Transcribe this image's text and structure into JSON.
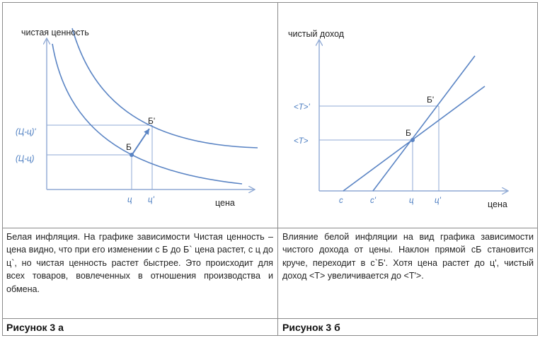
{
  "panel_a": {
    "y_axis_label": "чистая ценность",
    "x_axis_label": "цена",
    "y_ticks": [
      "(Ц-ц)'",
      "(Ц-ц)"
    ],
    "x_ticks": [
      "ц",
      "ц'"
    ],
    "point_labels": [
      "Б",
      "Б'"
    ],
    "caption": "Белая инфляция. На графике зависимости Чистая ценность – цена видно, что при его изменении с Б до Б` цена растет, с ц до ц`, но чистая ценность растет быстрее. Это происходит для всех товаров, вовлеченных в отношения производства и обмена.",
    "figure_label": "Рисунок 3 а"
  },
  "panel_b": {
    "y_axis_label": "чистый доход",
    "x_axis_label": "цена",
    "y_ticks": [
      "<T>'",
      "<T>"
    ],
    "x_ticks": [
      "c",
      "c'",
      "ц",
      "ц'"
    ],
    "point_labels": [
      "Б",
      "Б'"
    ],
    "caption": "Влияние белой инфляции на вид графика зависимости чистого дохода от цены. Наклон прямой cБ становится круче, переходит в с`Б'. Хотя цена растет до ц', чистый доход <T> увеличивается до <T'>.",
    "figure_label": "Рисунок 3 б"
  },
  "colors": {
    "curve": "#5a84c4",
    "axis": "#8fa9d4",
    "guide": "#8fa9d4",
    "label": "#4a7cc0"
  }
}
